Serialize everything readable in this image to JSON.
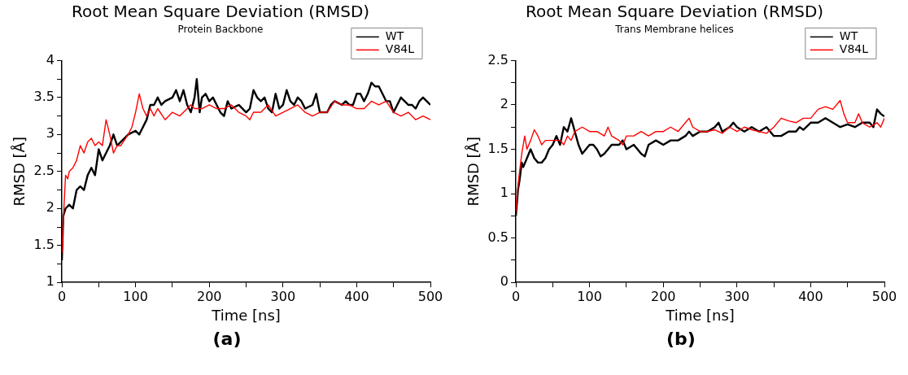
{
  "chart_data": [
    {
      "type": "line",
      "title": "Root Mean Square Deviation (RMSD)",
      "subtitle": "Protein Backbone",
      "xlabel": "Time [ns]",
      "ylabel": "RMSD [Å]",
      "annotations": [
        "(a)"
      ],
      "legend": "top right",
      "grid": false,
      "marker": "none",
      "line_style": "solid",
      "xlim": [
        0,
        500
      ],
      "xticks": [
        0,
        {
          "value": 50,
          "label": null
        },
        100,
        {
          "value": 150,
          "label": null
        },
        200,
        {
          "value": 250,
          "label": null
        },
        300,
        {
          "value": 350,
          "label": null
        },
        400,
        {
          "value": 450,
          "label": null
        },
        500
      ],
      "ylim": [
        1,
        4
      ],
      "yticks": [
        1,
        {
          "value": 1.25,
          "label": null
        },
        1.5,
        {
          "value": 1.75,
          "label": null
        },
        2,
        {
          "value": 2.25,
          "label": null
        },
        2.5,
        {
          "value": 2.75,
          "label": null
        },
        3,
        {
          "value": 3.25,
          "label": null
        },
        3.5,
        {
          "value": 3.75,
          "label": null
        },
        4
      ],
      "series": [
        {
          "name": "WT",
          "color": "#000000",
          "x": [
            0,
            2,
            5,
            10,
            15,
            20,
            25,
            30,
            35,
            40,
            45,
            50,
            55,
            60,
            65,
            70,
            75,
            80,
            90,
            100,
            105,
            110,
            115,
            120,
            125,
            130,
            135,
            140,
            150,
            155,
            160,
            165,
            170,
            175,
            180,
            183,
            187,
            190,
            195,
            200,
            205,
            210,
            215,
            220,
            225,
            230,
            240,
            250,
            255,
            260,
            265,
            270,
            275,
            280,
            285,
            290,
            295,
            300,
            305,
            310,
            315,
            320,
            325,
            330,
            340,
            345,
            350,
            355,
            360,
            365,
            370,
            380,
            385,
            390,
            395,
            400,
            405,
            410,
            415,
            420,
            425,
            430,
            435,
            440,
            445,
            450,
            455,
            460,
            465,
            470,
            475,
            480,
            485,
            490,
            495,
            500
          ],
          "values": [
            1.3,
            1.9,
            2.0,
            2.05,
            2.0,
            2.25,
            2.3,
            2.25,
            2.45,
            2.55,
            2.45,
            2.8,
            2.65,
            2.75,
            2.85,
            3.0,
            2.85,
            2.9,
            3.0,
            3.05,
            3.0,
            3.1,
            3.2,
            3.4,
            3.4,
            3.5,
            3.4,
            3.45,
            3.5,
            3.6,
            3.45,
            3.6,
            3.4,
            3.3,
            3.5,
            3.75,
            3.3,
            3.5,
            3.55,
            3.45,
            3.5,
            3.4,
            3.3,
            3.25,
            3.45,
            3.35,
            3.4,
            3.3,
            3.35,
            3.6,
            3.5,
            3.45,
            3.5,
            3.35,
            3.3,
            3.55,
            3.35,
            3.4,
            3.6,
            3.45,
            3.4,
            3.5,
            3.45,
            3.35,
            3.4,
            3.55,
            3.3,
            3.3,
            3.3,
            3.4,
            3.45,
            3.4,
            3.45,
            3.4,
            3.4,
            3.55,
            3.55,
            3.45,
            3.55,
            3.7,
            3.65,
            3.65,
            3.55,
            3.45,
            3.45,
            3.3,
            3.4,
            3.5,
            3.45,
            3.4,
            3.4,
            3.35,
            3.45,
            3.5,
            3.45,
            3.4
          ]
        },
        {
          "name": "V84L",
          "color": "#ff0000",
          "x": [
            0,
            3,
            5,
            8,
            10,
            15,
            20,
            25,
            30,
            35,
            40,
            45,
            50,
            55,
            60,
            65,
            70,
            75,
            80,
            90,
            95,
            100,
            105,
            110,
            115,
            120,
            125,
            130,
            140,
            150,
            160,
            170,
            175,
            180,
            190,
            200,
            210,
            220,
            230,
            240,
            250,
            255,
            260,
            270,
            280,
            290,
            300,
            310,
            320,
            325,
            330,
            340,
            350,
            360,
            370,
            380,
            390,
            400,
            410,
            420,
            430,
            440,
            450,
            460,
            470,
            480,
            490,
            500
          ],
          "values": [
            1.4,
            2.05,
            2.45,
            2.4,
            2.5,
            2.55,
            2.65,
            2.85,
            2.75,
            2.9,
            2.95,
            2.85,
            2.9,
            2.85,
            3.2,
            3.0,
            2.75,
            2.85,
            2.85,
            3.0,
            3.1,
            3.3,
            3.55,
            3.35,
            3.25,
            3.35,
            3.25,
            3.35,
            3.2,
            3.3,
            3.25,
            3.35,
            3.4,
            3.35,
            3.35,
            3.4,
            3.35,
            3.35,
            3.4,
            3.3,
            3.25,
            3.2,
            3.3,
            3.3,
            3.4,
            3.25,
            3.3,
            3.35,
            3.4,
            3.35,
            3.3,
            3.25,
            3.3,
            3.3,
            3.45,
            3.4,
            3.4,
            3.35,
            3.35,
            3.45,
            3.4,
            3.45,
            3.3,
            3.25,
            3.3,
            3.2,
            3.25,
            3.2
          ]
        }
      ]
    },
    {
      "type": "line",
      "title": "Root Mean Square Deviation (RMSD)",
      "subtitle": "Trans Membrane helices",
      "xlabel": "Time [ns]",
      "ylabel": "RMSD [Å]",
      "annotations": [
        "(b)"
      ],
      "legend": "top right",
      "grid": false,
      "marker": "none",
      "line_style": "solid",
      "xlim": [
        0,
        500
      ],
      "xticks": [
        0,
        {
          "value": 50,
          "label": null
        },
        100,
        {
          "value": 150,
          "label": null
        },
        200,
        {
          "value": 250,
          "label": null
        },
        300,
        {
          "value": 350,
          "label": null
        },
        400,
        {
          "value": 450,
          "label": null
        },
        500
      ],
      "ylim": [
        0,
        2.5
      ],
      "yticks": [
        0,
        {
          "value": 0.25,
          "label": null
        },
        0.5,
        {
          "value": 0.75,
          "label": null
        },
        1,
        {
          "value": 1.25,
          "label": null
        },
        1.5,
        {
          "value": 1.75,
          "label": null
        },
        2,
        {
          "value": 2.25,
          "label": null
        },
        2.5
      ],
      "series": [
        {
          "name": "WT",
          "color": "#000000",
          "x": [
            0,
            3,
            5,
            8,
            10,
            15,
            20,
            25,
            30,
            35,
            40,
            45,
            50,
            55,
            60,
            65,
            70,
            75,
            80,
            85,
            90,
            95,
            100,
            105,
            110,
            115,
            120,
            125,
            130,
            140,
            145,
            150,
            160,
            165,
            170,
            175,
            180,
            190,
            200,
            210,
            220,
            230,
            235,
            240,
            250,
            260,
            270,
            275,
            280,
            290,
            295,
            300,
            310,
            320,
            330,
            340,
            350,
            360,
            370,
            380,
            385,
            390,
            400,
            410,
            420,
            430,
            440,
            450,
            460,
            470,
            480,
            485,
            490,
            495,
            500
          ],
          "values": [
            0.75,
            1.05,
            1.15,
            1.35,
            1.3,
            1.4,
            1.5,
            1.4,
            1.35,
            1.35,
            1.4,
            1.5,
            1.55,
            1.65,
            1.55,
            1.75,
            1.7,
            1.85,
            1.7,
            1.55,
            1.45,
            1.5,
            1.55,
            1.55,
            1.5,
            1.42,
            1.45,
            1.5,
            1.55,
            1.55,
            1.6,
            1.5,
            1.55,
            1.5,
            1.45,
            1.42,
            1.55,
            1.6,
            1.55,
            1.6,
            1.6,
            1.65,
            1.7,
            1.65,
            1.7,
            1.7,
            1.75,
            1.8,
            1.7,
            1.75,
            1.8,
            1.75,
            1.7,
            1.75,
            1.7,
            1.75,
            1.65,
            1.65,
            1.7,
            1.7,
            1.75,
            1.72,
            1.8,
            1.8,
            1.85,
            1.8,
            1.75,
            1.78,
            1.75,
            1.8,
            1.8,
            1.75,
            1.95,
            1.9,
            1.87
          ]
        },
        {
          "name": "V84L",
          "color": "#ff0000",
          "x": [
            0,
            3,
            5,
            8,
            12,
            15,
            20,
            25,
            30,
            35,
            40,
            50,
            60,
            65,
            70,
            75,
            80,
            90,
            100,
            110,
            120,
            125,
            130,
            140,
            145,
            150,
            160,
            170,
            180,
            190,
            200,
            210,
            220,
            230,
            235,
            240,
            250,
            260,
            270,
            280,
            290,
            300,
            310,
            320,
            330,
            340,
            350,
            360,
            370,
            380,
            390,
            400,
            410,
            420,
            430,
            440,
            445,
            450,
            460,
            465,
            470,
            480,
            490,
            495,
            500
          ],
          "values": [
            0.8,
            1.1,
            1.25,
            1.45,
            1.65,
            1.5,
            1.6,
            1.72,
            1.65,
            1.55,
            1.6,
            1.6,
            1.6,
            1.55,
            1.65,
            1.6,
            1.7,
            1.75,
            1.7,
            1.7,
            1.65,
            1.75,
            1.65,
            1.6,
            1.55,
            1.65,
            1.65,
            1.7,
            1.65,
            1.7,
            1.7,
            1.75,
            1.7,
            1.8,
            1.85,
            1.75,
            1.7,
            1.7,
            1.72,
            1.68,
            1.75,
            1.7,
            1.75,
            1.72,
            1.7,
            1.68,
            1.75,
            1.85,
            1.82,
            1.8,
            1.85,
            1.85,
            1.95,
            1.98,
            1.95,
            2.05,
            1.9,
            1.8,
            1.8,
            1.9,
            1.8,
            1.75,
            1.8,
            1.75,
            1.85
          ]
        }
      ]
    }
  ]
}
